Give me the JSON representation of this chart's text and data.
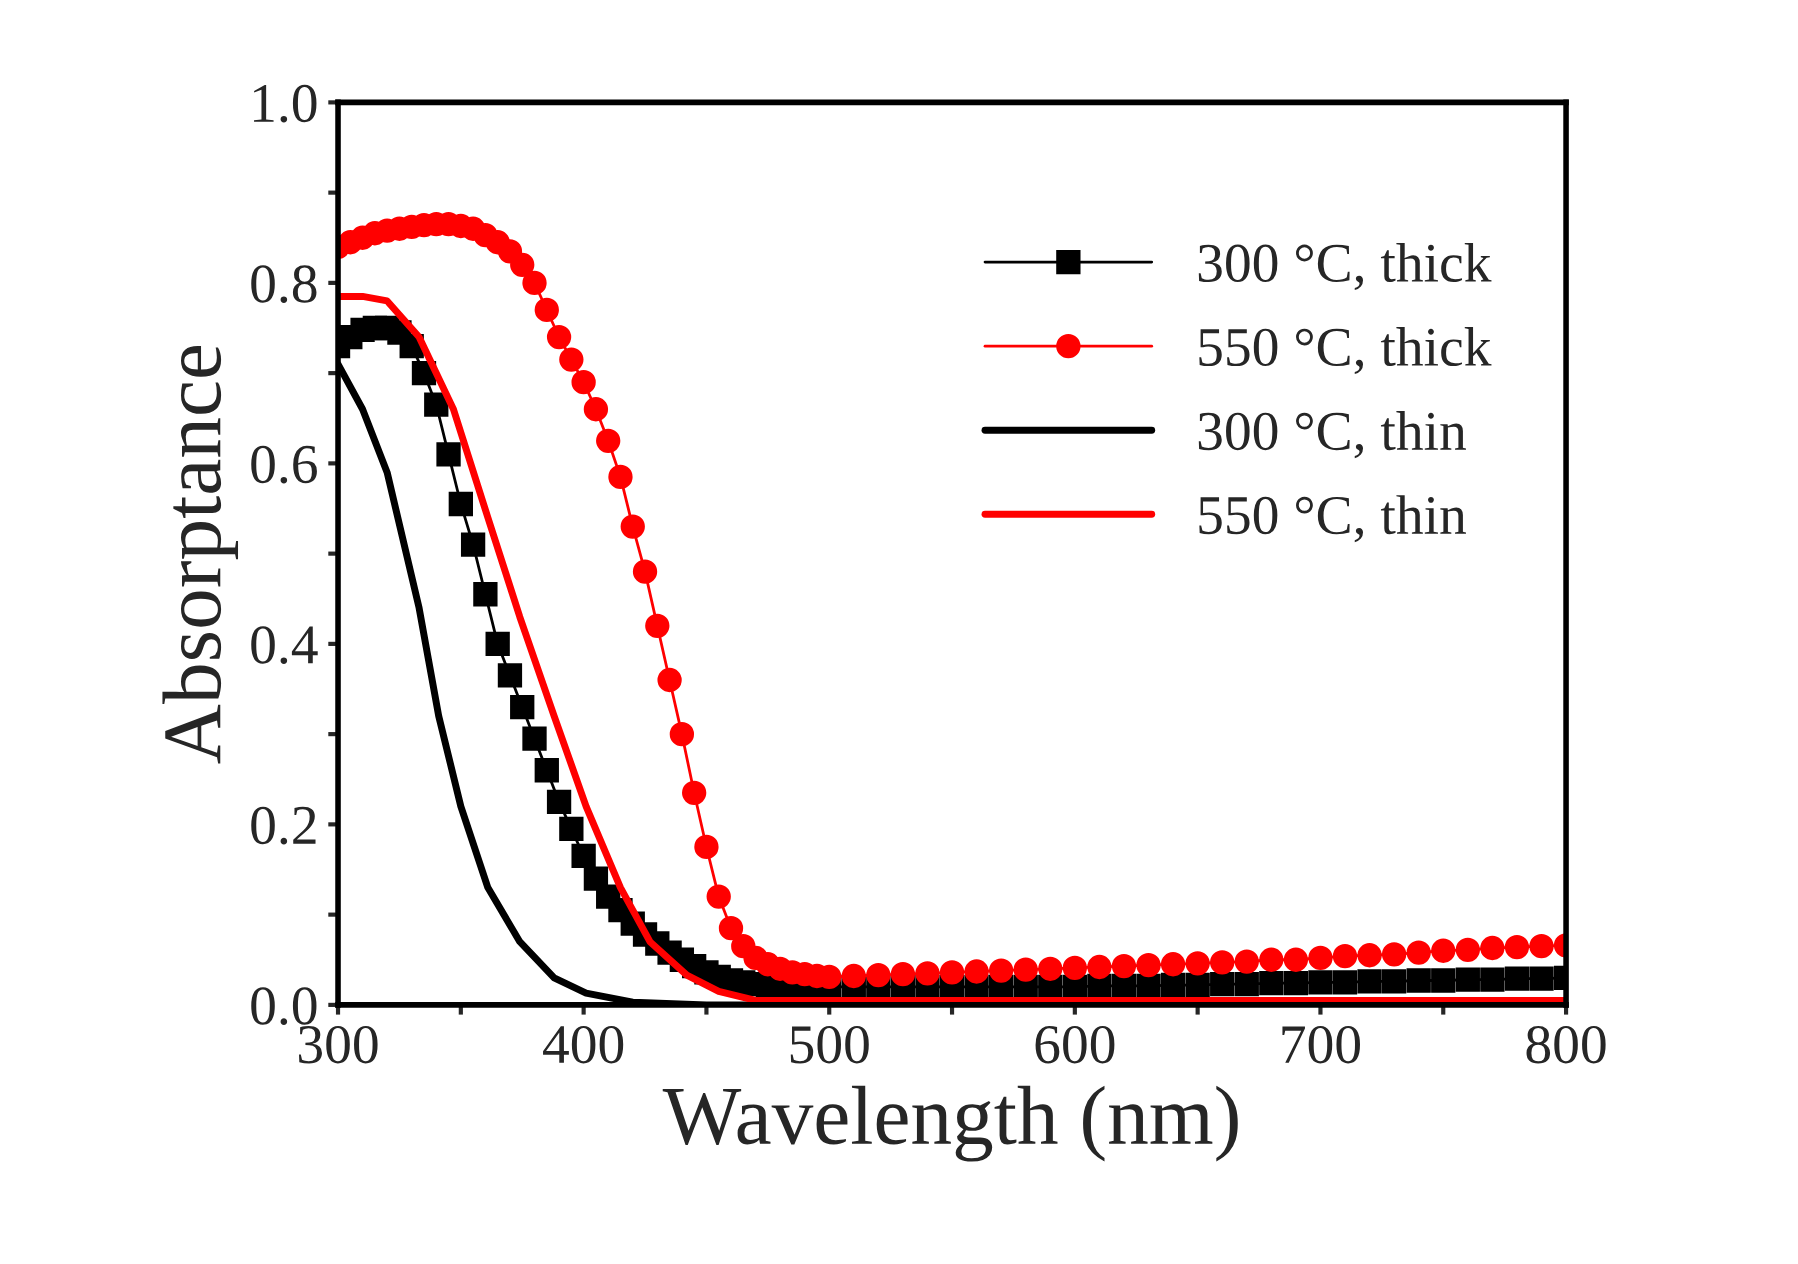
{
  "chart_data": {
    "type": "line",
    "xlabel": "Wavelength (nm)",
    "ylabel": "Absorptance",
    "xlim": [
      300,
      800
    ],
    "ylim": [
      0,
      1.0
    ],
    "xticks": [
      300,
      {
        "value": 350,
        "label": null
      },
      400,
      {
        "value": 450,
        "label": null
      },
      500,
      {
        "value": 550,
        "label": null
      },
      600,
      {
        "value": 650,
        "label": null
      },
      700,
      {
        "value": 750,
        "label": null
      },
      800
    ],
    "yticks": [
      {
        "value": 0,
        "label": "0.0"
      },
      {
        "value": 0.1,
        "label": null
      },
      {
        "value": 0.2,
        "label": "0.2"
      },
      {
        "value": 0.3,
        "label": null
      },
      {
        "value": 0.4,
        "label": "0.4"
      },
      {
        "value": 0.5,
        "label": null
      },
      {
        "value": 0.6,
        "label": "0.6"
      },
      {
        "value": 0.7,
        "label": null
      },
      {
        "value": 0.8,
        "label": "0.8"
      },
      {
        "value": 0.9,
        "label": null
      },
      {
        "value": 1.0,
        "label": "1.0"
      }
    ],
    "grid": false,
    "legend": "top right",
    "series": [
      {
        "name": "300 °C, thick",
        "color": "#000000",
        "marker": "square",
        "x": [
          300,
          305,
          310,
          315,
          320,
          325,
          330,
          335,
          340,
          345,
          350,
          355,
          360,
          365,
          370,
          375,
          380,
          385,
          390,
          395,
          400,
          405,
          410,
          415,
          420,
          425,
          430,
          435,
          440,
          445,
          450,
          455,
          460,
          465,
          470,
          475,
          480,
          485,
          490,
          495,
          500,
          510,
          520,
          530,
          540,
          550,
          560,
          570,
          580,
          590,
          600,
          610,
          620,
          630,
          640,
          650,
          660,
          670,
          680,
          690,
          700,
          710,
          720,
          730,
          740,
          750,
          760,
          770,
          780,
          790,
          800
        ],
        "values": [
          0.73,
          0.74,
          0.748,
          0.75,
          0.75,
          0.745,
          0.73,
          0.7,
          0.665,
          0.61,
          0.555,
          0.51,
          0.455,
          0.4,
          0.365,
          0.33,
          0.295,
          0.26,
          0.225,
          0.195,
          0.165,
          0.14,
          0.12,
          0.105,
          0.09,
          0.078,
          0.068,
          0.058,
          0.05,
          0.043,
          0.036,
          0.031,
          0.027,
          0.025,
          0.023,
          0.022,
          0.021,
          0.02,
          0.02,
          0.02,
          0.02,
          0.02,
          0.02,
          0.02,
          0.02,
          0.02,
          0.02,
          0.02,
          0.02,
          0.02,
          0.02,
          0.021,
          0.021,
          0.021,
          0.022,
          0.022,
          0.023,
          0.023,
          0.024,
          0.024,
          0.025,
          0.025,
          0.026,
          0.026,
          0.027,
          0.027,
          0.028,
          0.028,
          0.029,
          0.029,
          0.03
        ]
      },
      {
        "name": "550 °C, thick",
        "color": "#ff0000",
        "marker": "circle",
        "x": [
          300,
          305,
          310,
          315,
          320,
          325,
          330,
          335,
          340,
          345,
          350,
          355,
          360,
          365,
          370,
          375,
          380,
          385,
          390,
          395,
          400,
          405,
          410,
          415,
          420,
          425,
          430,
          435,
          440,
          445,
          450,
          455,
          460,
          465,
          470,
          475,
          480,
          485,
          490,
          495,
          500,
          510,
          520,
          530,
          540,
          550,
          560,
          570,
          580,
          590,
          600,
          610,
          620,
          630,
          640,
          650,
          660,
          670,
          680,
          690,
          700,
          710,
          720,
          730,
          740,
          750,
          760,
          770,
          780,
          790,
          800
        ],
        "values": [
          0.84,
          0.845,
          0.85,
          0.855,
          0.858,
          0.86,
          0.862,
          0.864,
          0.865,
          0.865,
          0.863,
          0.86,
          0.853,
          0.845,
          0.835,
          0.82,
          0.8,
          0.77,
          0.74,
          0.715,
          0.69,
          0.66,
          0.625,
          0.585,
          0.53,
          0.48,
          0.42,
          0.36,
          0.3,
          0.235,
          0.175,
          0.12,
          0.085,
          0.065,
          0.052,
          0.045,
          0.04,
          0.036,
          0.034,
          0.032,
          0.031,
          0.032,
          0.033,
          0.034,
          0.035,
          0.036,
          0.037,
          0.038,
          0.039,
          0.04,
          0.041,
          0.042,
          0.043,
          0.044,
          0.045,
          0.046,
          0.047,
          0.048,
          0.05,
          0.05,
          0.052,
          0.054,
          0.055,
          0.056,
          0.058,
          0.06,
          0.061,
          0.063,
          0.064,
          0.065,
          0.066
        ]
      },
      {
        "name": "300 °C, thin",
        "color": "#000000",
        "marker": "none",
        "x": [
          300,
          310,
          320,
          333,
          341,
          350,
          361,
          374,
          388,
          401,
          420,
          450,
          500,
          600,
          700,
          800
        ],
        "values": [
          0.71,
          0.66,
          0.59,
          0.44,
          0.32,
          0.22,
          0.13,
          0.07,
          0.03,
          0.013,
          0.003,
          0.0,
          0.0,
          0.0,
          0.0,
          0.0
        ]
      },
      {
        "name": "550 °C, thin",
        "color": "#ff0000",
        "marker": "none",
        "x": [
          300,
          310,
          320,
          333,
          347,
          361,
          374,
          388,
          401,
          415,
          427,
          442,
          455,
          470,
          500,
          600,
          700,
          800
        ],
        "values": [
          0.785,
          0.785,
          0.78,
          0.74,
          0.66,
          0.54,
          0.43,
          0.32,
          0.22,
          0.13,
          0.07,
          0.033,
          0.015,
          0.005,
          0.005,
          0.005,
          0.005,
          0.005
        ]
      }
    ]
  }
}
